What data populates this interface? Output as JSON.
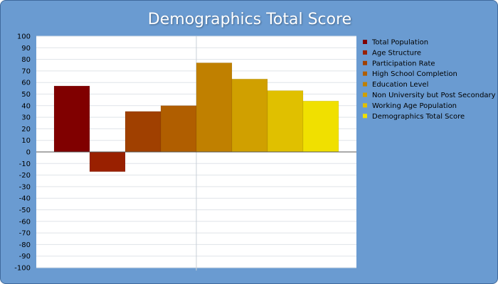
{
  "chart_data": {
    "type": "bar",
    "title": "Demographics Total Score",
    "xlabel": "",
    "ylabel": "",
    "ylim": [
      -100,
      100
    ],
    "y_ticks": [
      100,
      90,
      80,
      70,
      60,
      50,
      40,
      30,
      20,
      10,
      0,
      -10,
      -20,
      -30,
      -40,
      -50,
      -60,
      -70,
      -80,
      -90,
      -100
    ],
    "grid": true,
    "legend_position": "right",
    "series": [
      {
        "name": "Total Population",
        "value": 57,
        "color": "#800000"
      },
      {
        "name": "Age Structure",
        "value": -17,
        "color": "#992000"
      },
      {
        "name": "Participation Rate",
        "value": 35,
        "color": "#a04000"
      },
      {
        "name": "High School Completion",
        "value": 40,
        "color": "#b05e00"
      },
      {
        "name": "Education Level",
        "value": 77,
        "color": "#c08000"
      },
      {
        "name": "Non University but Post Secondary",
        "value": 63,
        "color": "#d0a000"
      },
      {
        "name": "Working Age Population",
        "value": 53,
        "color": "#e0c000"
      },
      {
        "name": "Demographics Total Score",
        "value": 44,
        "color": "#f0e000"
      }
    ]
  }
}
